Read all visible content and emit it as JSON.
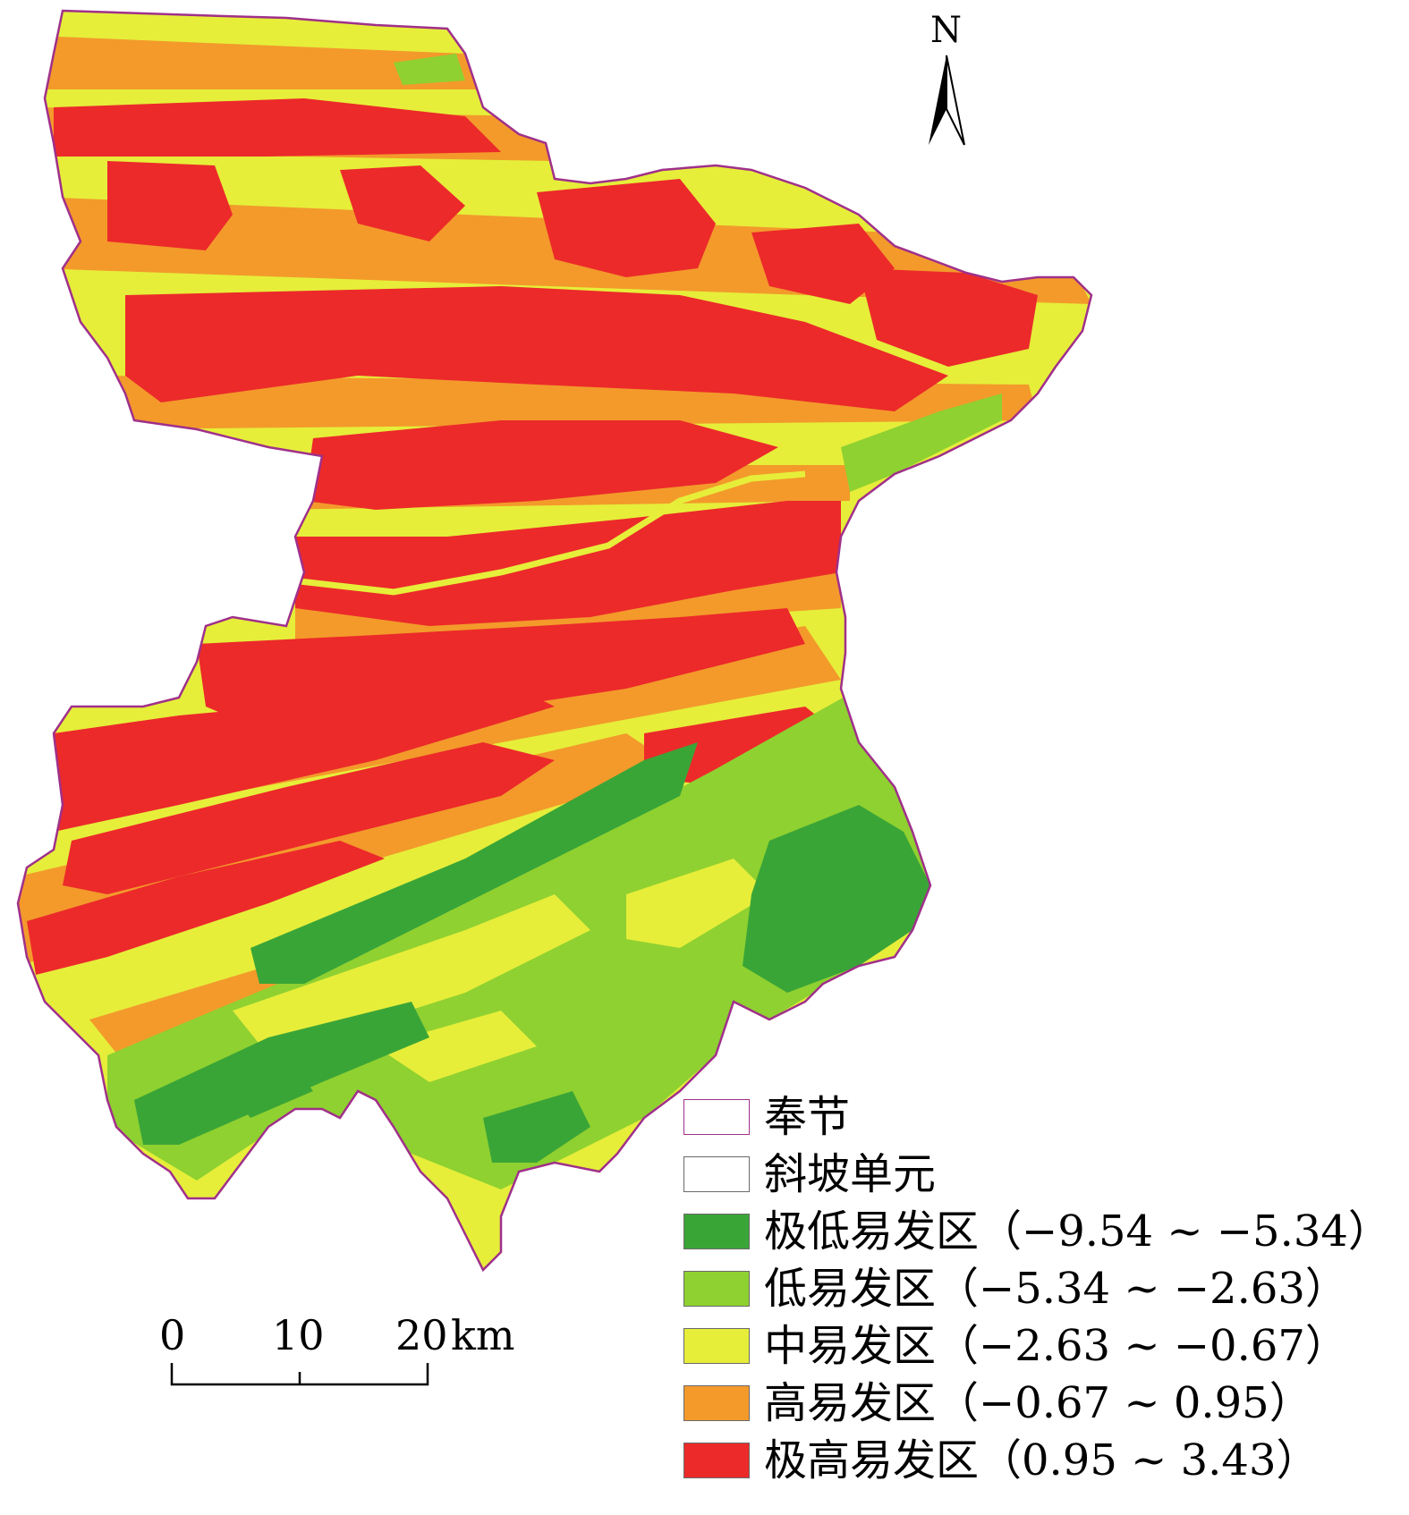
{
  "north_arrow": {
    "label": "N"
  },
  "scale_bar": {
    "ticks": [
      "0",
      "10",
      "20"
    ],
    "unit": "km"
  },
  "legend": {
    "items": [
      {
        "label": "奉节",
        "fill": "#ffffff",
        "stroke": "#a0308a"
      },
      {
        "label": "斜坡单元",
        "fill": "#ffffff",
        "stroke": "#6a6a6a"
      },
      {
        "label": "极低易发区（−9.54 ~ −5.34）",
        "fill": "#3aa537",
        "stroke": "#6a6a6a"
      },
      {
        "label": "低易发区（−5.34 ~ −2.63）",
        "fill": "#8fd130",
        "stroke": "#6a6a6a"
      },
      {
        "label": "中易发区（−2.63 ~ −0.67）",
        "fill": "#e6ee3a",
        "stroke": "#6a6a6a"
      },
      {
        "label": "高易发区（−0.67 ~ 0.95）",
        "fill": "#f39a2b",
        "stroke": "#6a6a6a"
      },
      {
        "label": "极高易发区（0.95 ~ 3.43）",
        "fill": "#ec2a2a",
        "stroke": "#6a6a6a"
      }
    ]
  },
  "colors": {
    "very_low": "#3aa537",
    "low": "#8fd130",
    "medium": "#e6ee3a",
    "high": "#f39a2b",
    "very_high": "#ec2a2a",
    "boundary": "#a0308a"
  }
}
